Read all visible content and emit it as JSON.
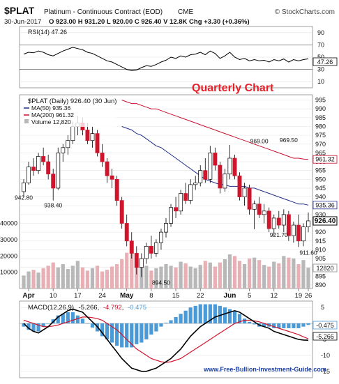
{
  "header": {
    "symbol": "$PLAT",
    "name": "Platinum - Continuous Contract (EOD)",
    "exchange": "CME",
    "brand": "© StockCharts.com",
    "date": "30-Jun-2017",
    "ohlc": "O 923.00  H 931.20  L 920.00  C 926.40  V 12.8K  Chg +3.30 (+0.36%)"
  },
  "rsi": {
    "legend": "RSI(14) 47.26",
    "last_label": "47.26",
    "ticks": [
      90,
      70,
      50,
      30,
      10
    ],
    "overbought": 70,
    "oversold": 30
  },
  "price": {
    "legend_main": "$PLAT (Daily) 926.40 (30 Jun)",
    "legend_ma50": "MA(50) 935.36",
    "legend_ma200": "MA(200) 961.32",
    "legend_volume": "Volume 12,820",
    "overlay_text": "Quarterly Chart",
    "ticks": [
      995,
      990,
      985,
      980,
      975,
      970,
      965,
      960,
      955,
      950,
      945,
      940,
      935,
      930,
      925,
      920,
      915,
      910,
      905,
      900,
      895,
      890
    ],
    "label_last": "926.40",
    "label_ma50": "935.36",
    "label_ma200": "961.32",
    "label_volume": "12820",
    "volume_ticks": [
      "40000",
      "30000",
      "20000",
      "10000"
    ],
    "annotations": [
      {
        "text": "942.80",
        "day": 0,
        "value": 942.8
      },
      {
        "text": "938.40",
        "day": 6,
        "value": 938.4
      },
      {
        "text": "894.50",
        "day": 28,
        "value": 894.5
      },
      {
        "text": "969.00",
        "day": 48,
        "value": 969.0
      },
      {
        "text": "969.50",
        "day": 54,
        "value": 969.5
      },
      {
        "text": "921.70",
        "day": 52,
        "value": 921.7
      },
      {
        "text": "911.60",
        "day": 78,
        "value": 911.6
      }
    ]
  },
  "macd": {
    "legend_prefix": "MACD(12,26,9)",
    "legend_macd": "-5.266",
    "legend_signal": "-4.792",
    "legend_hist": "-0.475",
    "label_hist": "-0.475",
    "label_macd": "-5.266",
    "ticks": [
      "5",
      "0",
      "-5",
      "-10",
      "-15"
    ],
    "watermark": "www.Free-Bullion-Investment-Guide.com"
  },
  "x_labels": [
    {
      "text": "Apr",
      "day": 1
    },
    {
      "text": "10",
      "day": 6
    },
    {
      "text": "17",
      "day": 11
    },
    {
      "text": "24",
      "day": 16
    },
    {
      "text": "May",
      "day": 21
    },
    {
      "text": "8",
      "day": 26
    },
    {
      "text": "15",
      "day": 31
    },
    {
      "text": "22",
      "day": 36
    },
    {
      "text": "Jun",
      "day": 42
    },
    {
      "text": "5",
      "day": 46
    },
    {
      "text": "12",
      "day": 51
    },
    {
      "text": "19",
      "day": 56
    },
    {
      "text": "26",
      "day": 61
    }
  ],
  "colors": {
    "up": "#ffffff",
    "down": "#d0142c",
    "ma50": "#1f2d8a",
    "ma200": "#c8102e",
    "vol_up": "#b8b8b8",
    "vol_down": "#e8b0b4",
    "macd_line": "#000000",
    "signal_line": "#d0142c",
    "hist": "#4a9ad8",
    "overlay": "#e8202a",
    "watermark": "#1c3fa0"
  },
  "chart_data": {
    "type": "line",
    "title": "$PLAT (Daily) 926.40 (30 Jun)",
    "period": "30-Mar-2017 to 30-Jun-2017 (daily)",
    "price_range": [
      888,
      998
    ],
    "candles": [
      {
        "o": 943,
        "h": 950,
        "l": 940,
        "c": 948
      },
      {
        "o": 948,
        "h": 960,
        "l": 947,
        "c": 957
      },
      {
        "o": 957,
        "h": 962,
        "l": 952,
        "c": 955
      },
      {
        "o": 955,
        "h": 965,
        "l": 953,
        "c": 963
      },
      {
        "o": 963,
        "h": 968,
        "l": 958,
        "c": 960
      },
      {
        "o": 960,
        "h": 964,
        "l": 950,
        "c": 953
      },
      {
        "o": 953,
        "h": 956,
        "l": 938,
        "c": 945
      },
      {
        "o": 945,
        "h": 968,
        "l": 944,
        "c": 965
      },
      {
        "o": 965,
        "h": 970,
        "l": 960,
        "c": 968
      },
      {
        "o": 968,
        "h": 975,
        "l": 964,
        "c": 972
      },
      {
        "o": 972,
        "h": 983,
        "l": 970,
        "c": 980
      },
      {
        "o": 980,
        "h": 986,
        "l": 975,
        "c": 982
      },
      {
        "o": 982,
        "h": 985,
        "l": 975,
        "c": 978
      },
      {
        "o": 978,
        "h": 982,
        "l": 970,
        "c": 972
      },
      {
        "o": 972,
        "h": 980,
        "l": 968,
        "c": 976
      },
      {
        "o": 976,
        "h": 978,
        "l": 963,
        "c": 965
      },
      {
        "o": 965,
        "h": 970,
        "l": 957,
        "c": 960
      },
      {
        "o": 960,
        "h": 962,
        "l": 948,
        "c": 952
      },
      {
        "o": 952,
        "h": 956,
        "l": 945,
        "c": 950
      },
      {
        "o": 950,
        "h": 952,
        "l": 935,
        "c": 938
      },
      {
        "o": 938,
        "h": 940,
        "l": 922,
        "c": 925
      },
      {
        "o": 925,
        "h": 930,
        "l": 912,
        "c": 915
      },
      {
        "o": 915,
        "h": 920,
        "l": 905,
        "c": 908
      },
      {
        "o": 908,
        "h": 912,
        "l": 896,
        "c": 900
      },
      {
        "o": 900,
        "h": 908,
        "l": 894.5,
        "c": 905
      },
      {
        "o": 905,
        "h": 914,
        "l": 902,
        "c": 912
      },
      {
        "o": 912,
        "h": 918,
        "l": 905,
        "c": 908
      },
      {
        "o": 908,
        "h": 916,
        "l": 906,
        "c": 914
      },
      {
        "o": 914,
        "h": 922,
        "l": 910,
        "c": 920
      },
      {
        "o": 920,
        "h": 928,
        "l": 917,
        "c": 925
      },
      {
        "o": 925,
        "h": 936,
        "l": 923,
        "c": 934
      },
      {
        "o": 934,
        "h": 940,
        "l": 928,
        "c": 932
      },
      {
        "o": 932,
        "h": 944,
        "l": 930,
        "c": 942
      },
      {
        "o": 942,
        "h": 948,
        "l": 936,
        "c": 938
      },
      {
        "o": 938,
        "h": 950,
        "l": 936,
        "c": 947
      },
      {
        "o": 947,
        "h": 952,
        "l": 944,
        "c": 948
      },
      {
        "o": 948,
        "h": 958,
        "l": 946,
        "c": 955
      },
      {
        "o": 955,
        "h": 962,
        "l": 948,
        "c": 950
      },
      {
        "o": 950,
        "h": 969,
        "l": 948,
        "c": 965
      },
      {
        "o": 965,
        "h": 968,
        "l": 955,
        "c": 958
      },
      {
        "o": 958,
        "h": 960,
        "l": 942,
        "c": 945
      },
      {
        "o": 945,
        "h": 956,
        "l": 943,
        "c": 953
      },
      {
        "o": 953,
        "h": 969.5,
        "l": 950,
        "c": 962
      },
      {
        "o": 962,
        "h": 964,
        "l": 950,
        "c": 952
      },
      {
        "o": 952,
        "h": 954,
        "l": 938,
        "c": 940
      },
      {
        "o": 940,
        "h": 948,
        "l": 935,
        "c": 945
      },
      {
        "o": 945,
        "h": 947,
        "l": 930,
        "c": 933
      },
      {
        "o": 933,
        "h": 938,
        "l": 921.7,
        "c": 936
      },
      {
        "o": 936,
        "h": 940,
        "l": 928,
        "c": 930
      },
      {
        "o": 930,
        "h": 936,
        "l": 925,
        "c": 932
      },
      {
        "o": 932,
        "h": 934,
        "l": 920,
        "c": 922
      },
      {
        "o": 922,
        "h": 930,
        "l": 918,
        "c": 928
      },
      {
        "o": 928,
        "h": 932,
        "l": 922,
        "c": 924
      },
      {
        "o": 924,
        "h": 933,
        "l": 920,
        "c": 930
      },
      {
        "o": 930,
        "h": 932,
        "l": 915,
        "c": 918
      },
      {
        "o": 918,
        "h": 926,
        "l": 914,
        "c": 924
      },
      {
        "o": 924,
        "h": 930,
        "l": 911.6,
        "c": 915
      },
      {
        "o": 915,
        "h": 925,
        "l": 912,
        "c": 923
      },
      {
        "o": 923,
        "h": 931.2,
        "l": 920,
        "c": 926.4
      }
    ],
    "ma50": [
      980,
      979,
      978,
      976,
      975,
      973,
      971,
      969,
      968,
      966,
      964,
      962,
      960,
      958,
      956,
      954,
      952,
      950,
      949,
      948,
      947,
      947,
      946,
      946,
      946,
      946,
      945,
      945,
      944,
      943,
      942,
      941,
      940,
      939,
      938,
      937,
      936,
      936,
      935.36
    ],
    "ma200": [
      995,
      994,
      993,
      993,
      992,
      991,
      990,
      990,
      989,
      988,
      987,
      986,
      985,
      984,
      983,
      982,
      981,
      980,
      979,
      978,
      977,
      976,
      975,
      974,
      973,
      972,
      971,
      970,
      969,
      968,
      967,
      966,
      965,
      964,
      963,
      962,
      962,
      961.5,
      961.32
    ],
    "volume": [
      8000,
      10500,
      11500,
      9800,
      12500,
      14000,
      16000,
      13000,
      15000,
      12000,
      14000,
      17000,
      13000,
      11000,
      12500,
      14000,
      10500,
      11500,
      13500,
      15000,
      18000,
      22000,
      25000,
      20000,
      16000,
      14000,
      11000,
      12500,
      13500,
      15000,
      14000,
      13000,
      16500,
      15500,
      13500,
      12500,
      14500,
      17000,
      16000,
      13500,
      16000,
      18000,
      21000,
      20000,
      17000,
      15000,
      18500,
      19000,
      17500,
      14500,
      13500,
      16500,
      15500,
      20000,
      19000,
      18500,
      15000,
      17500,
      12820
    ],
    "macd": [
      0,
      -1.5,
      -2.5,
      -3,
      -2,
      -1,
      0.5,
      2,
      3,
      4,
      4.5,
      4,
      3.5,
      2,
      0.5,
      -1,
      -3,
      -5,
      -7,
      -9,
      -11,
      -12.5,
      -14,
      -14.5,
      -15,
      -15,
      -14.5,
      -14,
      -13,
      -12,
      -11,
      -9.5,
      -8,
      -6,
      -4,
      -2.5,
      -1,
      0,
      1,
      2,
      2.5,
      3,
      3.5,
      4,
      3.5,
      2.5,
      1.5,
      0.5,
      -0.5,
      -1,
      -1.5,
      -2.5,
      -3,
      -3.5,
      -4,
      -4.5,
      -5,
      -5.2,
      -5.266
    ],
    "signal": [
      1,
      0.5,
      0,
      -0.5,
      -1,
      -1,
      -0.8,
      -0.5,
      0,
      0.5,
      1,
      1.5,
      2,
      2,
      1.8,
      1.5,
      1,
      0,
      -1,
      -2,
      -3.5,
      -5,
      -6.5,
      -8,
      -9,
      -10,
      -11,
      -11.5,
      -12,
      -12.2,
      -12,
      -11.5,
      -11,
      -10,
      -9,
      -8,
      -7,
      -6,
      -5,
      -4,
      -3,
      -2,
      -1,
      0,
      0.5,
      1,
      1,
      0.8,
      0.5,
      0,
      -0.5,
      -1,
      -1.5,
      -2,
      -2.5,
      -3,
      -3.5,
      -4.2,
      -4.792
    ],
    "rsi": [
      55,
      58,
      57,
      60,
      58,
      54,
      52,
      56,
      60,
      63,
      66,
      64,
      62,
      58,
      56,
      52,
      48,
      44,
      42,
      38,
      34,
      30,
      28,
      29,
      33,
      36,
      35,
      38,
      42,
      45,
      50,
      48,
      52,
      50,
      54,
      55,
      58,
      54,
      60,
      56,
      48,
      52,
      58,
      50,
      46,
      48,
      44,
      46,
      44,
      45,
      42,
      46,
      44,
      47,
      42,
      46,
      44,
      46,
      47.26
    ],
    "xlabel": "",
    "ylabel": ""
  }
}
